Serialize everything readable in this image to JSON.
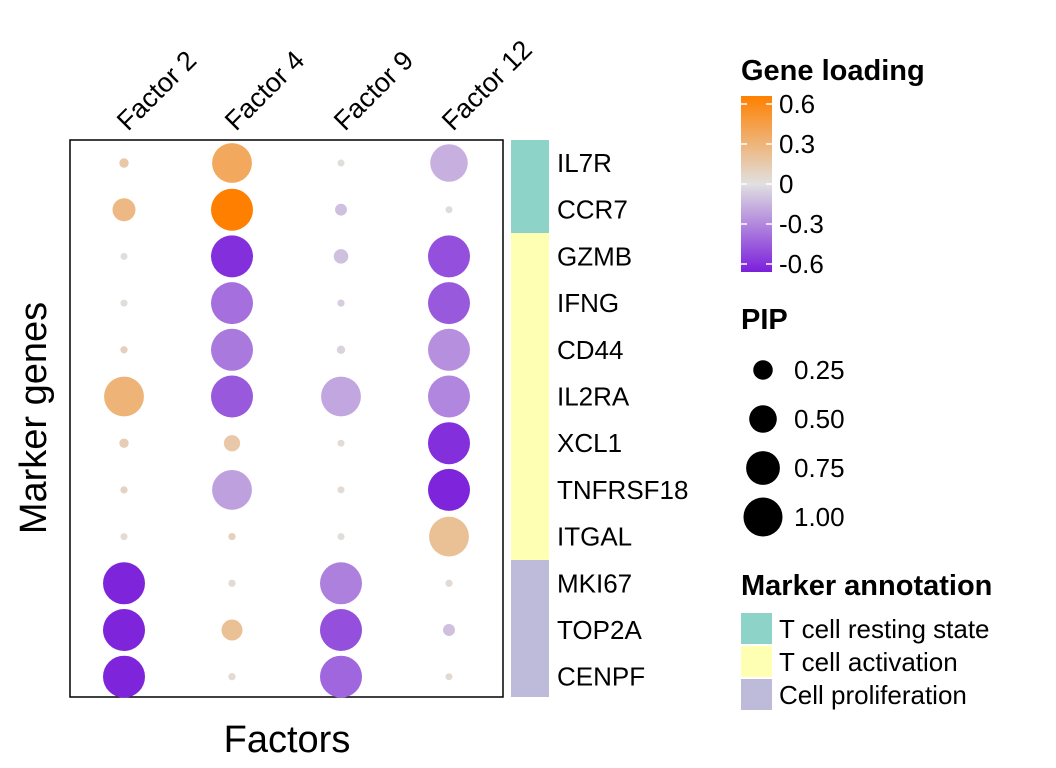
{
  "chart_data": {
    "type": "dotplot",
    "xlabel": "Factors",
    "ylabel": "Marker genes",
    "factors": [
      "Factor 2",
      "Factor 4",
      "Factor 9",
      "Factor 12"
    ],
    "genes": [
      "IL7R",
      "CCR7",
      "GZMB",
      "IFNG",
      "CD44",
      "IL2RA",
      "XCL1",
      "TNFRSF18",
      "ITGAL",
      "MKI67",
      "TOP2A",
      "CENPF"
    ],
    "gene_annotation": [
      0,
      0,
      1,
      1,
      1,
      1,
      1,
      1,
      1,
      2,
      2,
      2
    ],
    "annotations": [
      {
        "label": "T cell resting state",
        "color": "#8DD3C7"
      },
      {
        "label": "T cell activation",
        "color": "#FFFFB3"
      },
      {
        "label": "Cell proliferation",
        "color": "#BEBADA"
      }
    ],
    "loading": [
      [
        0.15,
        0.35,
        0.02,
        -0.15
      ],
      [
        0.25,
        0.6,
        -0.1,
        -0.02
      ],
      [
        0.02,
        -0.55,
        -0.1,
        -0.45
      ],
      [
        0.02,
        -0.35,
        -0.06,
        -0.42
      ],
      [
        0.1,
        -0.32,
        -0.04,
        -0.25
      ],
      [
        0.28,
        -0.42,
        -0.18,
        -0.28
      ],
      [
        0.12,
        0.15,
        0.03,
        -0.55
      ],
      [
        0.08,
        -0.2,
        0.03,
        -0.58
      ],
      [
        0.03,
        0.1,
        0.02,
        0.2
      ],
      [
        -0.58,
        0.03,
        -0.3,
        0.03
      ],
      [
        -0.58,
        0.2,
        -0.45,
        -0.1
      ],
      [
        -0.58,
        0.03,
        -0.38,
        0.04
      ]
    ],
    "pip": [
      [
        0.05,
        0.9,
        0.02,
        0.8
      ],
      [
        0.3,
        1.0,
        0.08,
        0.02
      ],
      [
        0.02,
        1.0,
        0.12,
        1.0
      ],
      [
        0.02,
        1.0,
        0.03,
        1.0
      ],
      [
        0.03,
        1.0,
        0.04,
        1.0
      ],
      [
        0.9,
        1.0,
        0.9,
        1.0
      ],
      [
        0.05,
        0.15,
        0.02,
        1.0
      ],
      [
        0.03,
        0.9,
        0.02,
        1.0
      ],
      [
        0.02,
        0.03,
        0.02,
        0.9
      ],
      [
        1.0,
        0.03,
        1.0,
        0.03
      ],
      [
        1.0,
        0.25,
        1.0,
        0.08
      ],
      [
        1.0,
        0.03,
        1.0,
        0.02
      ]
    ],
    "color_scale": {
      "min": -0.6,
      "max": 0.6,
      "low": "#7B1FDB",
      "mid": "#E0E0E0",
      "high": "#FF8000",
      "ticks": [
        0.6,
        0.3,
        0,
        -0.3,
        -0.6
      ],
      "tick_labels": [
        "0.6",
        "0.3",
        "0",
        "-0.3",
        "-0.6"
      ]
    },
    "size_scale": {
      "ticks": [
        0.25,
        0.5,
        0.75,
        1.0
      ],
      "tick_labels": [
        "0.25",
        "0.50",
        "0.75",
        "1.00"
      ]
    },
    "legend_titles": {
      "loading": "Gene loading",
      "pip": "PIP",
      "annotation": "Marker annotation"
    }
  }
}
